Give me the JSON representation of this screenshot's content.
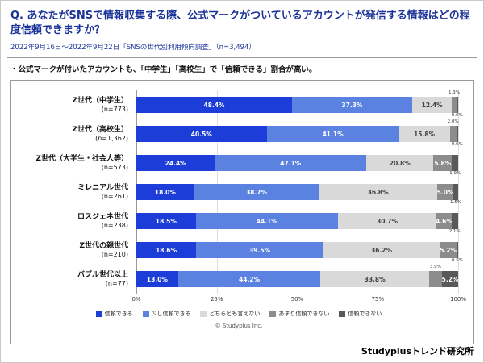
{
  "header": {
    "title": "Q. あなたがSNSで情報収集する際、公式マークがついているアカウントが発信する情報はどの程度信頼できますか？",
    "subtitle": "2022年9月16日～2022年9月22日「SNSの世代別利用傾向調査」（n=3,494）"
  },
  "insight": "・公式マークが付いたアカウントも、「中学生」「高校生」で「信頼できる」割合が高い。",
  "footer": {
    "copyright": "© Studyplus Inc.",
    "brand": "Studyplusトレンド研究所"
  },
  "colors": {
    "title_blue": "#1b3399",
    "grid": "#dcdcdc",
    "axis": "#9a9a9a"
  },
  "chart_data": {
    "type": "bar",
    "orientation": "horizontal",
    "stacked": true,
    "xlim": [
      0,
      100
    ],
    "x_ticks": [
      "0%",
      "25%",
      "50%",
      "75%",
      "100%"
    ],
    "legend_position": "bottom",
    "grid": true,
    "categories": [
      "Z世代（中学生）",
      "Z世代（高校生）",
      "Z世代（大学生・社会人等）",
      "ミレニアル世代",
      "ロスジェネ世代",
      "Z世代の親世代",
      "バブル世代以上"
    ],
    "n_labels": [
      "(n=773)",
      "(n=1,362)",
      "(n=573)",
      "(n=261)",
      "(n=238)",
      "(n=210)",
      "(n=77)"
    ],
    "series": [
      {
        "name": "信頼できる",
        "color": "#1d3dd8",
        "text_color": "#ffffff",
        "values": [
          48.4,
          40.5,
          24.4,
          18.0,
          18.5,
          18.6,
          13.0
        ]
      },
      {
        "name": "少し信頼できる",
        "color": "#5b82e0",
        "text_color": "#ffffff",
        "values": [
          37.3,
          41.1,
          47.1,
          38.7,
          44.1,
          39.5,
          44.2
        ]
      },
      {
        "name": "どちらとも言えない",
        "color": "#d9d9d9",
        "text_color": "#404040",
        "values": [
          12.4,
          15.8,
          20.8,
          36.8,
          30.7,
          36.2,
          33.8
        ]
      },
      {
        "name": "あまり信頼できない",
        "color": "#8c8c8c",
        "text_color": "#ffffff",
        "values": [
          1.3,
          2.0,
          5.8,
          5.0,
          4.6,
          5.2,
          3.9
        ]
      },
      {
        "name": "信頼できない",
        "color": "#595959",
        "text_color": "#ffffff",
        "values": [
          0.6,
          0.6,
          1.9,
          1.5,
          2.1,
          0.5,
          5.2
        ]
      }
    ]
  }
}
